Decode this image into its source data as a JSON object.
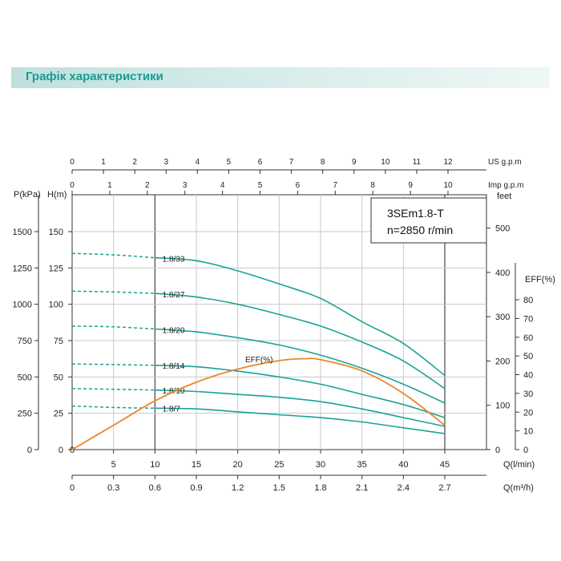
{
  "header": {
    "title": "Графік характеристики"
  },
  "chart_data": {
    "type": "line",
    "model": "3SEm1.8-T",
    "speed": "n=2850 r/min",
    "flow_axis_lpm": {
      "label": "Q(l/min)",
      "range": [
        0,
        45
      ],
      "ticks": [
        5,
        10,
        15,
        20,
        25,
        30,
        35,
        40,
        45
      ]
    },
    "flow_axis_m3h": {
      "label": "Q(m³/h)",
      "range": [
        0,
        2.7
      ],
      "ticks": [
        "0",
        "0.3",
        "0.6",
        "0.9",
        "1.2",
        "1.5",
        "1.8",
        "2.1",
        "2.4",
        "2.7"
      ]
    },
    "us_gpm_axis": {
      "label": "US  g.p.m",
      "range": [
        0,
        12
      ],
      "ticks": [
        "0",
        "1",
        "2",
        "3",
        "4",
        "5",
        "6",
        "7",
        "8",
        "9",
        "10",
        "11",
        "12"
      ]
    },
    "imp_gpm_axis": {
      "label": "Imp  g.p.m",
      "range": [
        0,
        10
      ],
      "ticks": [
        "0",
        "1",
        "2",
        "3",
        "4",
        "5",
        "6",
        "7",
        "8",
        "9",
        "10"
      ]
    },
    "pressure_axis": {
      "label": "P(kPa)",
      "range": [
        0,
        1500
      ],
      "ticks": [
        "0",
        "250",
        "500",
        "750",
        "1000",
        "1250",
        "1500"
      ]
    },
    "head_axis": {
      "label": "H(m)",
      "range": [
        0,
        150
      ],
      "ticks": [
        "0",
        "25",
        "50",
        "75",
        "100",
        "125",
        "150"
      ]
    },
    "feet_axis": {
      "label": "feet",
      "ticks": [
        "0",
        "100",
        "200",
        "300",
        "400",
        "500"
      ]
    },
    "eff_axis": {
      "label": "EFF(%)",
      "range": [
        0,
        80
      ],
      "ticks": [
        "0",
        "10",
        "20",
        "30",
        "40",
        "50",
        "60",
        "70",
        "80"
      ]
    },
    "efficiency_label": "EFF(%)",
    "solid_start": 10,
    "series": [
      {
        "name": "1.8/33",
        "x": [
          0,
          5,
          10,
          15,
          20,
          25,
          30,
          35,
          40,
          45
        ],
        "y": [
          135,
          134,
          132,
          130,
          123,
          114,
          104,
          88,
          73,
          51
        ]
      },
      {
        "name": "1.8/27",
        "x": [
          0,
          5,
          10,
          15,
          20,
          25,
          30,
          35,
          40,
          45
        ],
        "y": [
          109,
          108.5,
          107.5,
          105,
          100,
          93,
          85,
          74,
          61,
          42
        ]
      },
      {
        "name": "1.8/20",
        "x": [
          0,
          5,
          10,
          15,
          20,
          25,
          30,
          35,
          40,
          45
        ],
        "y": [
          85,
          84.5,
          83,
          81,
          77,
          72,
          65,
          56,
          45,
          32
        ]
      },
      {
        "name": "1.8/14",
        "x": [
          0,
          5,
          10,
          15,
          20,
          25,
          30,
          35,
          40,
          45
        ],
        "y": [
          59,
          58.5,
          58,
          57,
          54,
          50,
          45,
          38,
          31,
          22
        ]
      },
      {
        "name": "1.8/10",
        "x": [
          0,
          5,
          10,
          15,
          20,
          25,
          30,
          35,
          40,
          45
        ],
        "y": [
          42,
          41.5,
          41,
          40,
          38,
          36,
          33,
          28,
          22,
          16
        ]
      },
      {
        "name": "1.8/7",
        "x": [
          0,
          5,
          10,
          15,
          20,
          25,
          30,
          35,
          40,
          45
        ],
        "y": [
          30,
          29,
          28.5,
          28,
          26,
          24,
          22,
          19,
          15,
          11
        ]
      }
    ],
    "efficiency": {
      "x": [
        0,
        5,
        10,
        15,
        20,
        25,
        28,
        30,
        35,
        40,
        45
      ],
      "y": [
        0,
        13,
        26,
        36,
        43,
        47.5,
        48.5,
        48,
        42,
        30,
        13
      ]
    },
    "colors": {
      "head": "#1aa394",
      "efficiency": "#e8872a",
      "grid": "#c8c8c8",
      "frame": "#333333"
    }
  }
}
